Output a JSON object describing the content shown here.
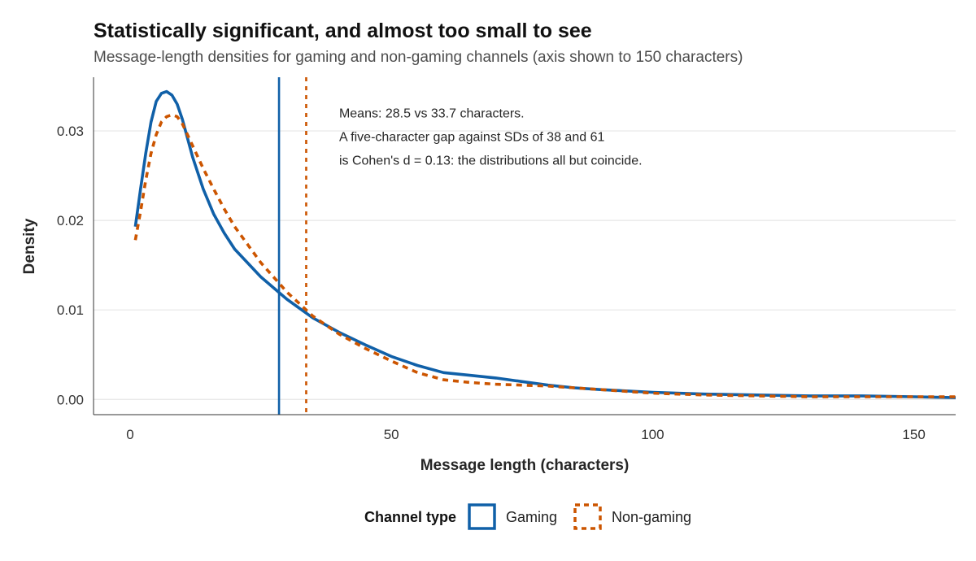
{
  "chart_data": {
    "type": "line",
    "title": "Statistically significant, and almost too small to see",
    "subtitle": "Message-length densities for gaming and non-gaming channels (axis shown to 150 characters)",
    "xlabel": "Message length (characters)",
    "ylabel": "Density",
    "xlim": [
      -7,
      158
    ],
    "ylim": [
      -0.0017,
      0.036
    ],
    "x_ticks": [
      0,
      50,
      100,
      150
    ],
    "x_tick_labels": [
      "0",
      "50",
      "100",
      "150"
    ],
    "y_ticks": [
      0,
      0.01,
      0.02,
      0.03
    ],
    "y_tick_labels": [
      "0.00",
      "0.01",
      "0.02",
      "0.03"
    ],
    "grid": "horizontal",
    "legend": {
      "title": "Channel type",
      "position": "bottom"
    },
    "series": [
      {
        "name": "Gaming",
        "color": "#1060a8",
        "dash": "solid",
        "x": [
          1,
          2,
          3,
          4,
          5,
          6,
          7,
          8,
          9,
          10,
          12,
          14,
          16,
          18,
          20,
          25,
          30,
          35,
          40,
          45,
          50,
          55,
          60,
          65,
          70,
          75,
          80,
          85,
          90,
          100,
          110,
          120,
          130,
          140,
          150,
          158
        ],
        "y": [
          0.0193,
          0.0235,
          0.0275,
          0.031,
          0.0333,
          0.0342,
          0.0344,
          0.034,
          0.033,
          0.0313,
          0.027,
          0.0235,
          0.0207,
          0.0186,
          0.0168,
          0.0137,
          0.0112,
          0.0091,
          0.0075,
          0.0061,
          0.0048,
          0.0038,
          0.003,
          0.0027,
          0.0024,
          0.002,
          0.0016,
          0.0013,
          0.0011,
          0.0008,
          0.0006,
          0.0005,
          0.0004,
          0.0004,
          0.0003,
          0.0002
        ]
      },
      {
        "name": "Non-gaming",
        "color": "#cc5500",
        "dash": "dashed",
        "x": [
          1,
          2,
          3,
          4,
          5,
          6,
          7,
          8,
          9,
          10,
          12,
          14,
          16,
          18,
          20,
          25,
          30,
          35,
          40,
          45,
          50,
          55,
          60,
          65,
          70,
          75,
          80,
          85,
          90,
          100,
          110,
          120,
          130,
          140,
          150,
          158
        ],
        "y": [
          0.0178,
          0.021,
          0.0245,
          0.0275,
          0.0296,
          0.031,
          0.0316,
          0.0318,
          0.0316,
          0.0308,
          0.0283,
          0.0258,
          0.0235,
          0.0213,
          0.0193,
          0.0153,
          0.012,
          0.0093,
          0.0073,
          0.0057,
          0.0043,
          0.003,
          0.0022,
          0.0019,
          0.0017,
          0.0016,
          0.0015,
          0.0013,
          0.0011,
          0.0007,
          0.0005,
          0.0004,
          0.0003,
          0.0003,
          0.0003,
          0.0003
        ]
      }
    ],
    "reference_lines": [
      {
        "series": "Gaming",
        "x": 28.5,
        "color": "#1060a8",
        "dash": "solid"
      },
      {
        "series": "Non-gaming",
        "x": 33.7,
        "color": "#cc5500",
        "dash": "dashed"
      }
    ],
    "annotation": {
      "x": 40,
      "y": 0.0315,
      "lines": [
        "Means: 28.5 vs 33.7 characters.",
        "A five-character gap against SDs of 38 and 61",
        "is Cohen's d = 0.13: the distributions all but coincide."
      ]
    }
  }
}
